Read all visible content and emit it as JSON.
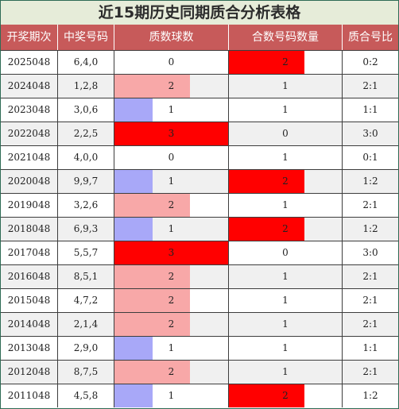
{
  "title": "近15期历史同期质合分析表格",
  "columns": [
    "开奖期次",
    "中奖号码",
    "质数球数",
    "合数号码数量",
    "质合号比"
  ],
  "colors": {
    "title_bg": "#e6ecd9",
    "header_bg": "#c75a5a",
    "prime_1": "#a8a8f8",
    "prime_2": "#f8a8a8",
    "prime_3": "#ff0000",
    "composite_2": "#ff0000"
  },
  "chart_data": {
    "type": "table",
    "title": "近15期历史同期质合分析表格",
    "columns": [
      "开奖期次",
      "中奖号码",
      "质数球数",
      "合数号码数量",
      "质合号比"
    ],
    "max_count": 3,
    "rows": [
      {
        "period": "2025048",
        "numbers": "6,4,0",
        "primes": 0,
        "composites": 2,
        "ratio": "0:2"
      },
      {
        "period": "2024048",
        "numbers": "1,2,8",
        "primes": 2,
        "composites": 1,
        "ratio": "2:1"
      },
      {
        "period": "2023048",
        "numbers": "3,0,6",
        "primes": 1,
        "composites": 1,
        "ratio": "1:1"
      },
      {
        "period": "2022048",
        "numbers": "2,2,5",
        "primes": 3,
        "composites": 0,
        "ratio": "3:0"
      },
      {
        "period": "2021048",
        "numbers": "4,0,0",
        "primes": 0,
        "composites": 1,
        "ratio": "0:1"
      },
      {
        "period": "2020048",
        "numbers": "9,9,7",
        "primes": 1,
        "composites": 2,
        "ratio": "1:2"
      },
      {
        "period": "2019048",
        "numbers": "3,2,6",
        "primes": 2,
        "composites": 1,
        "ratio": "2:1"
      },
      {
        "period": "2018048",
        "numbers": "6,9,3",
        "primes": 1,
        "composites": 2,
        "ratio": "1:2"
      },
      {
        "period": "2017048",
        "numbers": "5,5,7",
        "primes": 3,
        "composites": 0,
        "ratio": "3:0"
      },
      {
        "period": "2016048",
        "numbers": "8,5,1",
        "primes": 2,
        "composites": 1,
        "ratio": "2:1"
      },
      {
        "period": "2015048",
        "numbers": "4,7,2",
        "primes": 2,
        "composites": 1,
        "ratio": "2:1"
      },
      {
        "period": "2014048",
        "numbers": "2,1,4",
        "primes": 2,
        "composites": 1,
        "ratio": "2:1"
      },
      {
        "period": "2013048",
        "numbers": "2,9,0",
        "primes": 1,
        "composites": 1,
        "ratio": "1:1"
      },
      {
        "period": "2012048",
        "numbers": "8,7,5",
        "primes": 2,
        "composites": 1,
        "ratio": "2:1"
      },
      {
        "period": "2011048",
        "numbers": "4,5,8",
        "primes": 1,
        "composites": 2,
        "ratio": "1:2"
      }
    ]
  }
}
